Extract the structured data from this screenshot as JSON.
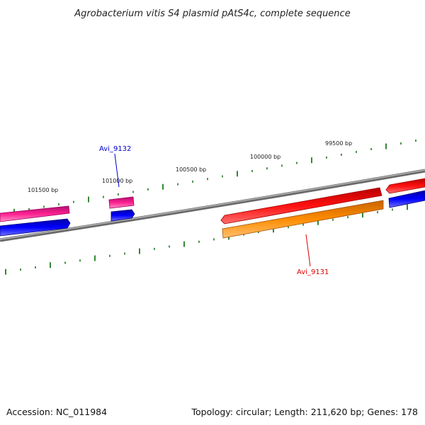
{
  "title": "Agrobacterium vitis S4 plasmid pAtS4c, complete sequence",
  "footer": {
    "accession": "Accession: NC_011984",
    "summary": "Topology: circular; Length: 211,620 bp; Genes: 178"
  },
  "tick_labels": {
    "t99500": "99500 bp",
    "t100000": "100000 bp",
    "t100500": "100500 bp",
    "t101000": "101000 bp",
    "t101500": "101500 bp"
  },
  "gene_labels": {
    "avi_9132": "Avi_9132",
    "avi_9131": "Avi_9131"
  },
  "colors": {
    "backbone": "#808080",
    "tick": "#1e7a1e",
    "cds_red": "#ee0000",
    "cds_orange": "#ff8c00",
    "cds_pink": "#ee1a8c",
    "cds_blue": "#0000ee",
    "label_blue": "#0000cc",
    "label_red": "#dd0000"
  }
}
